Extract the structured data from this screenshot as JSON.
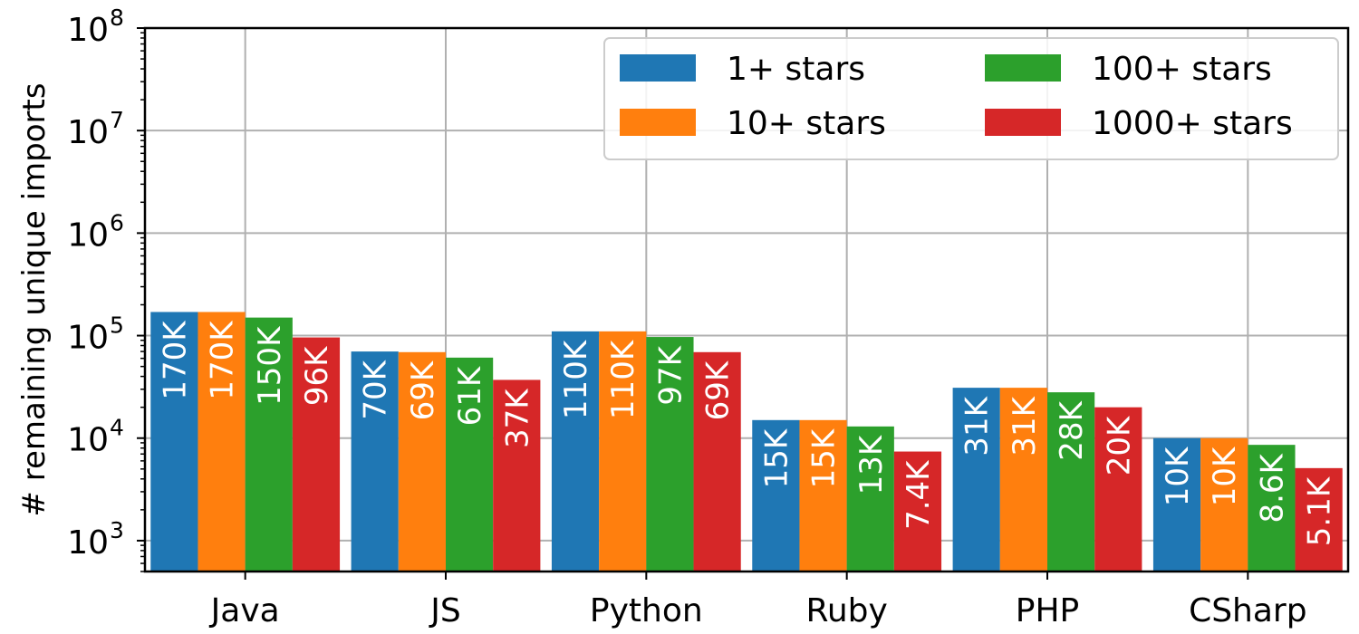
{
  "chart_data": {
    "type": "bar",
    "scale": "log",
    "categories": [
      "Java",
      "JS",
      "Python",
      "Ruby",
      "PHP",
      "CSharp"
    ],
    "series": [
      {
        "name": "1+ stars",
        "color": "#1f77b4",
        "values": [
          170000,
          70000,
          110000,
          15000,
          31000,
          10000
        ],
        "labels": [
          "170K",
          "70K",
          "110K",
          "15K",
          "31K",
          "10K"
        ]
      },
      {
        "name": "10+ stars",
        "color": "#ff7f0e",
        "values": [
          170000,
          69000,
          110000,
          15000,
          31000,
          10000
        ],
        "labels": [
          "170K",
          "69K",
          "110K",
          "15K",
          "31K",
          "10K"
        ]
      },
      {
        "name": "100+ stars",
        "color": "#2ca02c",
        "values": [
          150000,
          61000,
          97000,
          13000,
          28000,
          8600
        ],
        "labels": [
          "150K",
          "61K",
          "97K",
          "13K",
          "28K",
          "8.6K"
        ]
      },
      {
        "name": "1000+ stars",
        "color": "#d62728",
        "values": [
          96000,
          37000,
          69000,
          7400,
          20000,
          5100
        ],
        "labels": [
          "96K",
          "37K",
          "69K",
          "7.4K",
          "20K",
          "5.1K"
        ]
      }
    ],
    "ylabel": "# remaining unique imports",
    "xlabel": "",
    "ylim": [
      500,
      100000000
    ],
    "yticks": [
      {
        "value": 1000,
        "base": "10",
        "exp": "3"
      },
      {
        "value": 10000,
        "base": "10",
        "exp": "4"
      },
      {
        "value": 100000,
        "base": "10",
        "exp": "5"
      },
      {
        "value": 1000000,
        "base": "10",
        "exp": "6"
      },
      {
        "value": 10000000,
        "base": "10",
        "exp": "7"
      },
      {
        "value": 100000000,
        "base": "10",
        "exp": "8"
      }
    ],
    "grid": true,
    "legend_position": "top-right",
    "legend_columns": 2
  }
}
